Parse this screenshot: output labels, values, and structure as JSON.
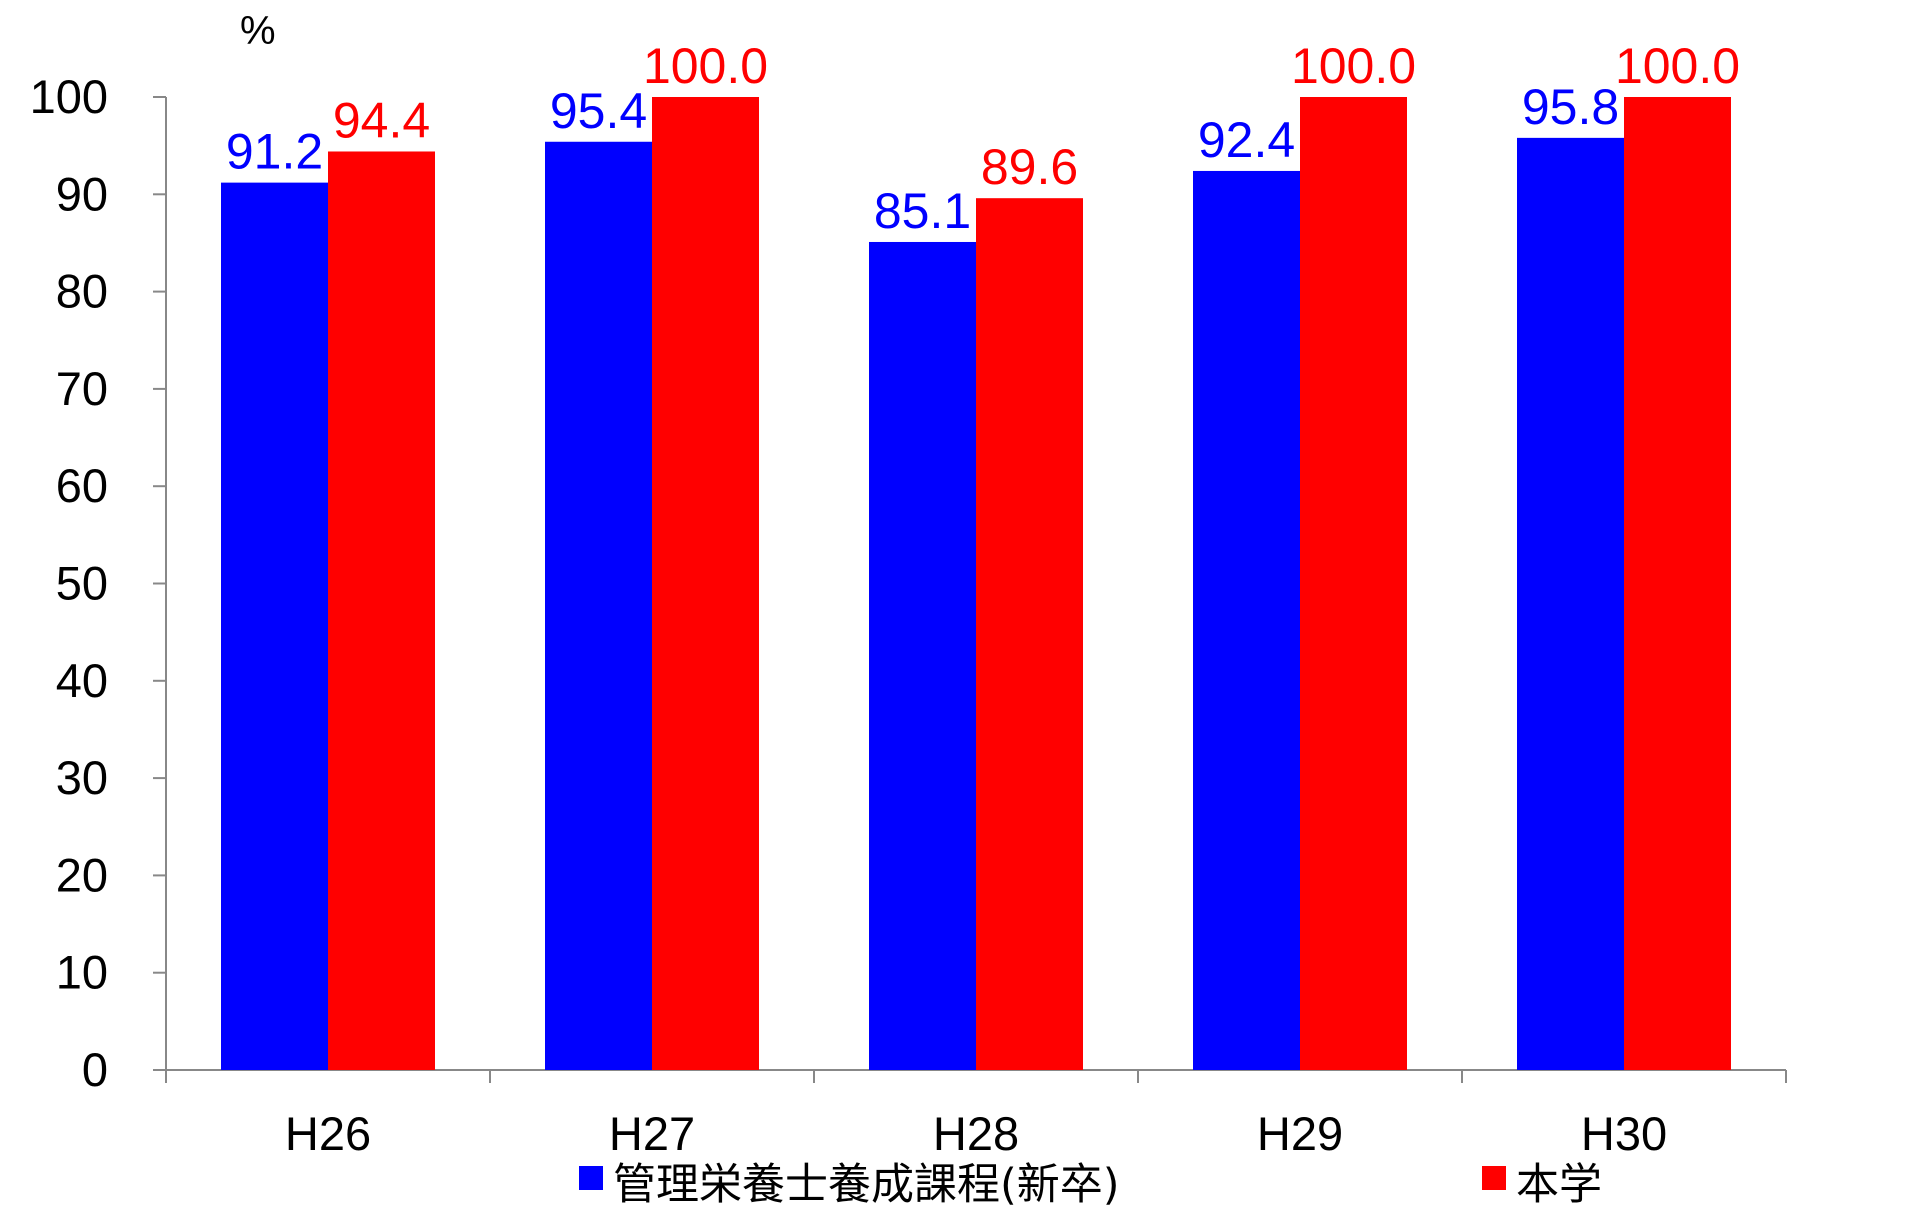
{
  "chart_data": {
    "type": "bar",
    "unit_label": "%",
    "categories": [
      "H26",
      "H27",
      "H28",
      "H29",
      "H30"
    ],
    "series": [
      {
        "name": "管理栄養士養成課程(新卒)",
        "color": "#0000ff",
        "values": [
          91.2,
          95.4,
          85.1,
          92.4,
          95.8
        ],
        "labels": [
          "91.2",
          "95.4",
          "85.1",
          "92.4",
          "95.8"
        ]
      },
      {
        "name": "本学",
        "color": "#ff0000",
        "values": [
          94.4,
          100.0,
          89.6,
          100.0,
          100.0
        ],
        "labels": [
          "94.4",
          "100.0",
          "89.6",
          "100.0",
          "100.0"
        ]
      }
    ],
    "ylim": [
      0,
      100
    ],
    "yticks": [
      0,
      10,
      20,
      30,
      40,
      50,
      60,
      70,
      80,
      90,
      100
    ],
    "grid": false,
    "legend_position": "bottom"
  }
}
